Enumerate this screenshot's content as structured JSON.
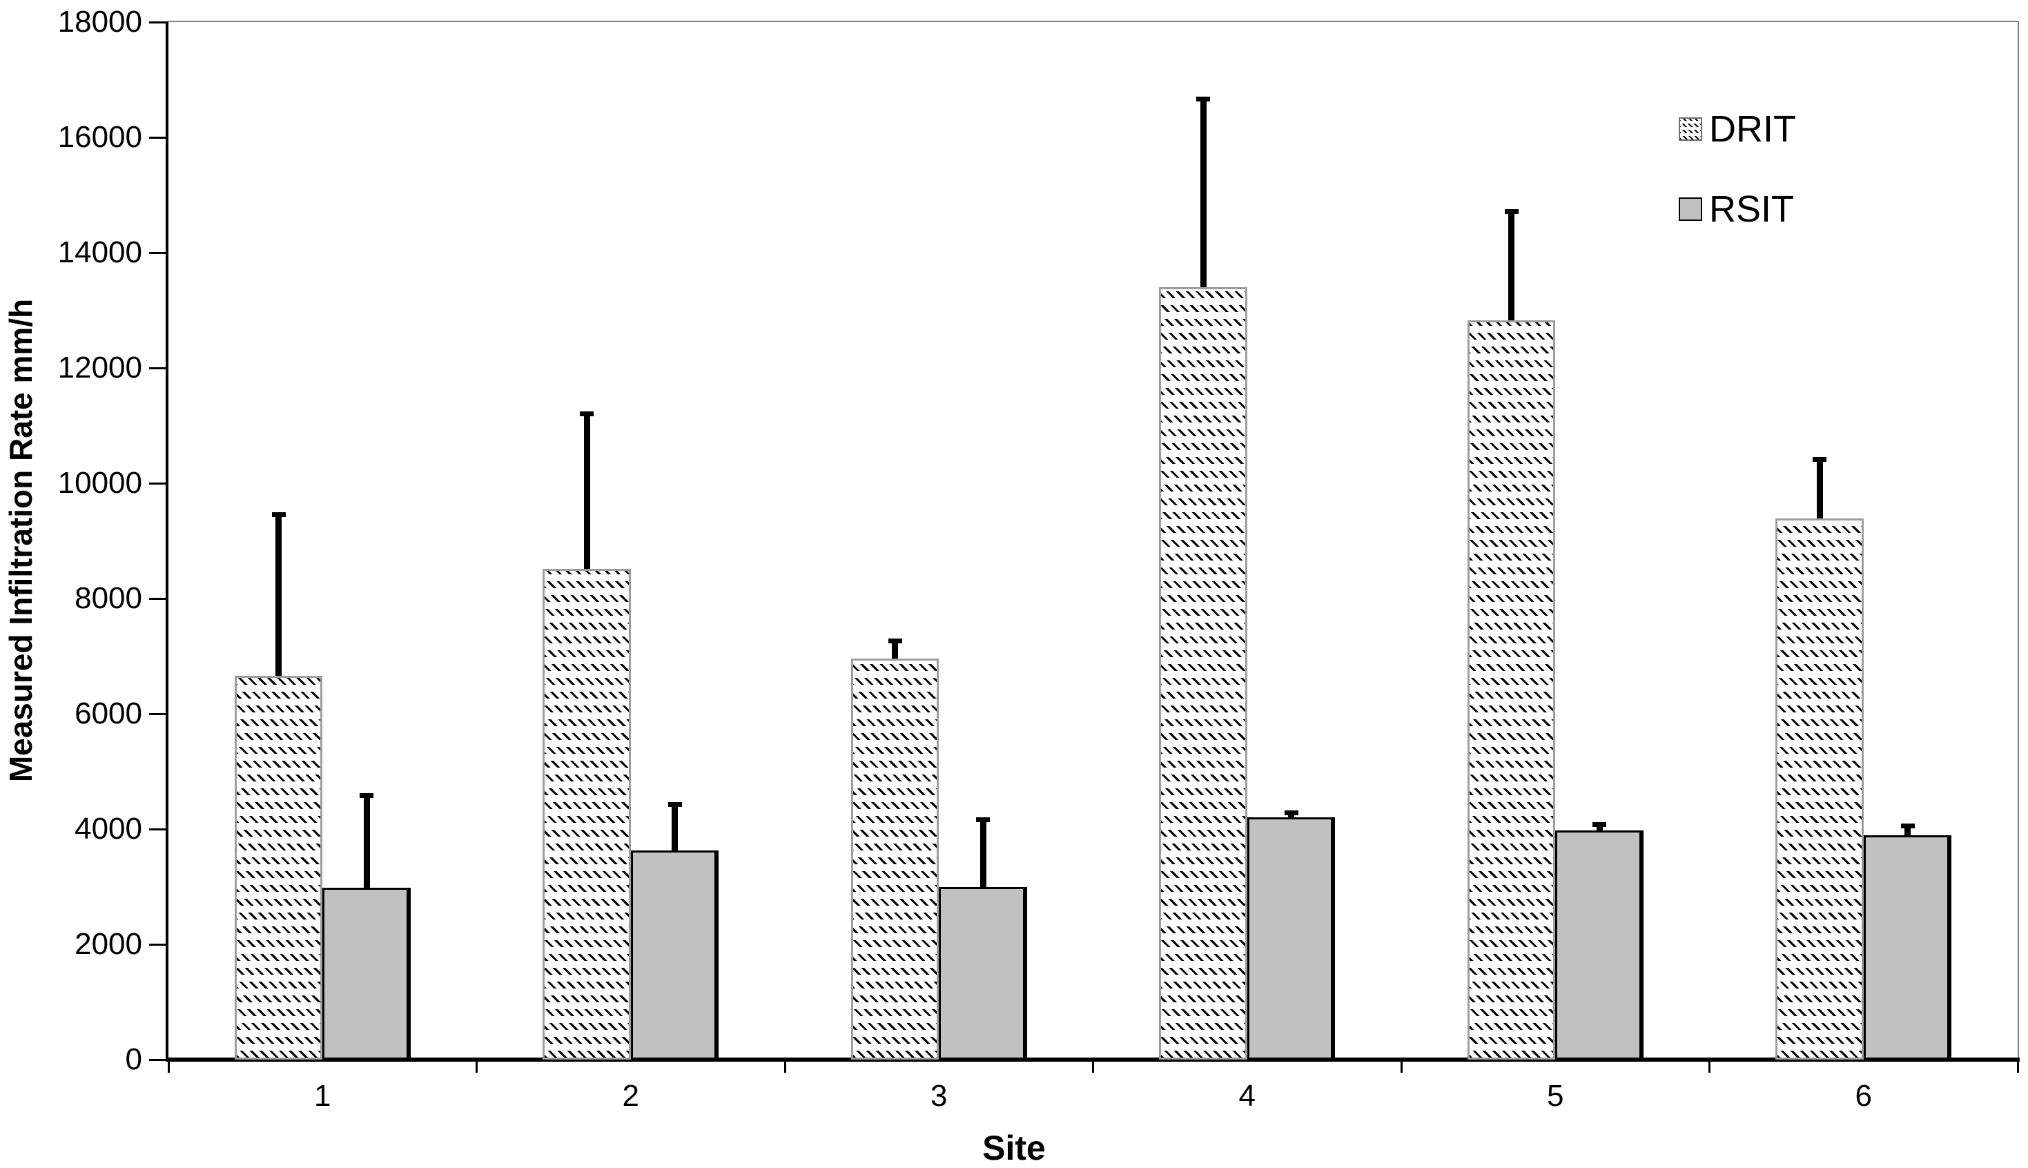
{
  "figure": {
    "background": "#ffffff",
    "frame_color": "#808080",
    "axis_color": "#000000"
  },
  "chart_data": {
    "type": "bar",
    "title": "",
    "xlabel": "Site",
    "ylabel": "Measured Infiltration Rate mm/h",
    "categories": [
      "1",
      "2",
      "3",
      "4",
      "5",
      "6"
    ],
    "series": [
      {
        "name": "DRIT",
        "style": "hatched-diagonal",
        "fill": "#ffffff",
        "hatch_color": "#000000",
        "border_color": "#9e9e9e",
        "values": [
          6660,
          8510,
          6960,
          13400,
          12830,
          9390
        ],
        "errors_plus": [
          2840,
          2740,
          340,
          3310,
          1920,
          1060
        ]
      },
      {
        "name": "RSIT",
        "style": "solid",
        "fill": "#c1c1c1",
        "border_color": "#000000",
        "values": [
          2980,
          3630,
          2990,
          4200,
          3980,
          3890
        ],
        "errors_plus": [
          1640,
          840,
          1210,
          120,
          140,
          200
        ]
      }
    ],
    "ylim": [
      0,
      18000
    ],
    "ytick_step": 2000,
    "yticks": [
      0,
      2000,
      4000,
      6000,
      8000,
      10000,
      12000,
      14000,
      16000,
      18000
    ],
    "error_bar_color": "#000000",
    "grid": false,
    "legend": {
      "position": "top-right",
      "entries": [
        "DRIT",
        "RSIT"
      ]
    }
  }
}
